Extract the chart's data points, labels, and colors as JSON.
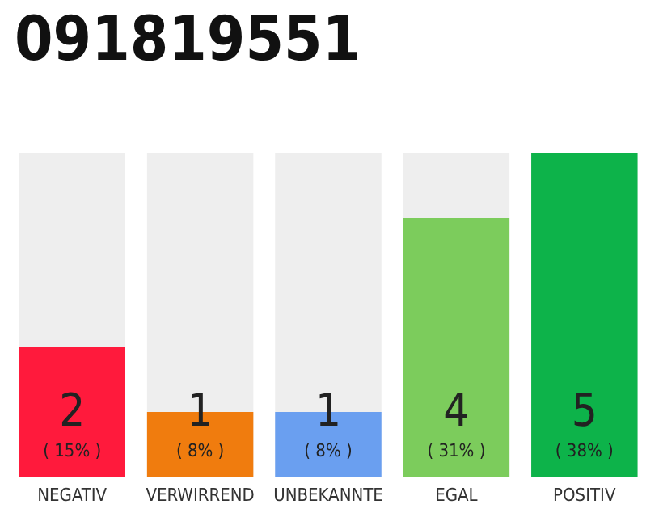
{
  "chart_data": {
    "type": "bar",
    "title": "091819551",
    "categories": [
      "NEGATIV",
      "VERWIRREND",
      "UNBEKANNTE",
      "EGAL",
      "POSITIV"
    ],
    "values": [
      2,
      1,
      1,
      4,
      5
    ],
    "colors": [
      "#ff1a3c",
      "#f07c0e",
      "#6a9ff0",
      "#7ccc5c",
      "#0db34a"
    ],
    "value_labels": [
      "2\n( 15% )",
      "1\n( 8% )",
      "1\n( 8% )",
      "4\n( 31% )",
      "5\n( 38% )"
    ],
    "data_labels": true
  }
}
